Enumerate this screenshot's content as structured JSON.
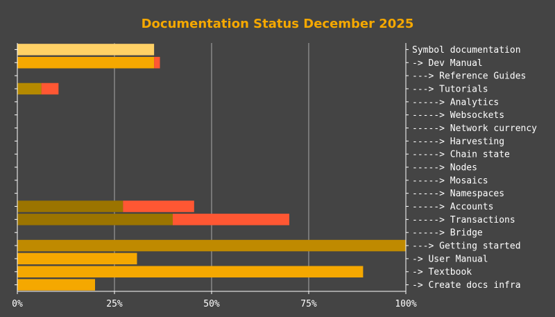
{
  "chart_data": {
    "type": "bar",
    "orientation": "horizontal",
    "stacked": true,
    "title": "Documentation Status December 2025",
    "xlim": [
      0,
      100
    ],
    "x_ticks": [
      0,
      25,
      50,
      75,
      100
    ],
    "x_tick_labels": [
      "0%",
      "25%",
      "50%",
      "75%",
      "100%"
    ],
    "grid": "vertical",
    "legend": "none",
    "categories": [
      "Symbol documentation",
      "-> Dev Manual",
      "---> Reference Guides",
      "---> Tutorials",
      "-----> Analytics",
      "-----> Websockets",
      "-----> Network currency",
      "-----> Harvesting",
      "-----> Chain state",
      "-----> Nodes",
      "-----> Mosaics",
      "-----> Namespaces",
      "-----> Accounts",
      "-----> Transactions",
      "-----> Bridge",
      "---> Getting started",
      "-> User Manual",
      "-> Textbook",
      "-> Create docs infra"
    ],
    "bars": [
      {
        "segments": [
          {
            "value": 35.2,
            "color": "#FFD166"
          }
        ]
      },
      {
        "segments": [
          {
            "value": 35.2,
            "color": "#F5A800"
          },
          {
            "value": 1.5,
            "color": "#FF5733"
          }
        ]
      },
      {
        "segments": []
      },
      {
        "segments": [
          {
            "value": 6.2,
            "color": "#B58A00"
          },
          {
            "value": 4.4,
            "color": "#FF5733"
          }
        ]
      },
      {
        "segments": []
      },
      {
        "segments": []
      },
      {
        "segments": []
      },
      {
        "segments": []
      },
      {
        "segments": []
      },
      {
        "segments": []
      },
      {
        "segments": []
      },
      {
        "segments": []
      },
      {
        "segments": [
          {
            "value": 27.2,
            "color": "#9B7400"
          },
          {
            "value": 18.3,
            "color": "#FF5733"
          }
        ]
      },
      {
        "segments": [
          {
            "value": 40.0,
            "color": "#9B7400"
          },
          {
            "value": 30.0,
            "color": "#FF5733"
          }
        ]
      },
      {
        "segments": []
      },
      {
        "segments": [
          {
            "value": 100,
            "color": "#BF8A00"
          }
        ]
      },
      {
        "segments": [
          {
            "value": 30.8,
            "color": "#F5A800"
          }
        ]
      },
      {
        "segments": [
          {
            "value": 89.0,
            "color": "#F5A800"
          }
        ]
      },
      {
        "segments": [
          {
            "value": 20.0,
            "color": "#F5A800"
          }
        ]
      }
    ],
    "colors": {
      "background": "#444444",
      "title": "#F5A800",
      "text": "#FFFFFF",
      "grid": "#AAAAAA"
    }
  }
}
